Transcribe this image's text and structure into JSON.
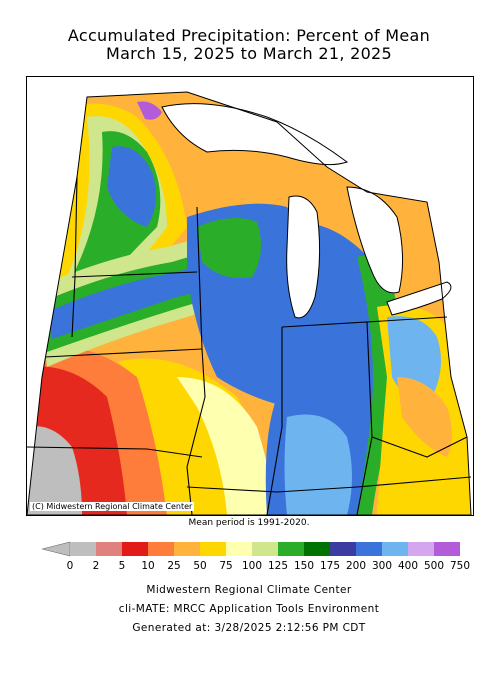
{
  "title_line1": "Accumulated Precipitation: Percent of Mean",
  "title_line2": "March 15, 2025 to March 21, 2025",
  "credit": "(C) Midwestern Regional Climate Center",
  "mean_period": "Mean period is 1991-2020.",
  "legend": {
    "labels": [
      "0",
      "2",
      "5",
      "10",
      "25",
      "50",
      "75",
      "100",
      "125",
      "150",
      "175",
      "200",
      "300",
      "400",
      "500",
      "750"
    ],
    "colors": [
      "#bebebe",
      "#e0807f",
      "#e21a1a",
      "#ff7d3a",
      "#ffb33c",
      "#ffd700",
      "#ffffb0",
      "#cfe68c",
      "#2aae2a",
      "#007200",
      "#3c3ca0",
      "#3a73d9",
      "#6eb5f0",
      "#d4a6f0",
      "#b35cd9"
    ]
  },
  "footer": {
    "line1": "Midwestern Regional Climate Center",
    "line2": "cli-MATE: MRCC Application Tools Environment",
    "line3": "Generated at: 3/28/2025 2:12:56 PM CDT"
  },
  "map": {
    "region": "Upper Midwest / Great Lakes",
    "lakes": [
      "Lake Superior",
      "Lake Michigan",
      "Lake Huron",
      "Lake Erie"
    ],
    "colors": {
      "gray": "#bebebe",
      "red": "#e21a1a",
      "orange_red": "#ff7d3a",
      "orange": "#ffb33c",
      "yellow": "#ffd700",
      "pale_yellow": "#ffffb0",
      "light_green": "#cfe68c",
      "green": "#2aae2a",
      "dark_green": "#007200",
      "navy": "#3c3ca0",
      "blue": "#3a73d9",
      "light_blue": "#6eb5f0",
      "lavender": "#d4a6f0",
      "purple": "#b35cd9"
    }
  }
}
